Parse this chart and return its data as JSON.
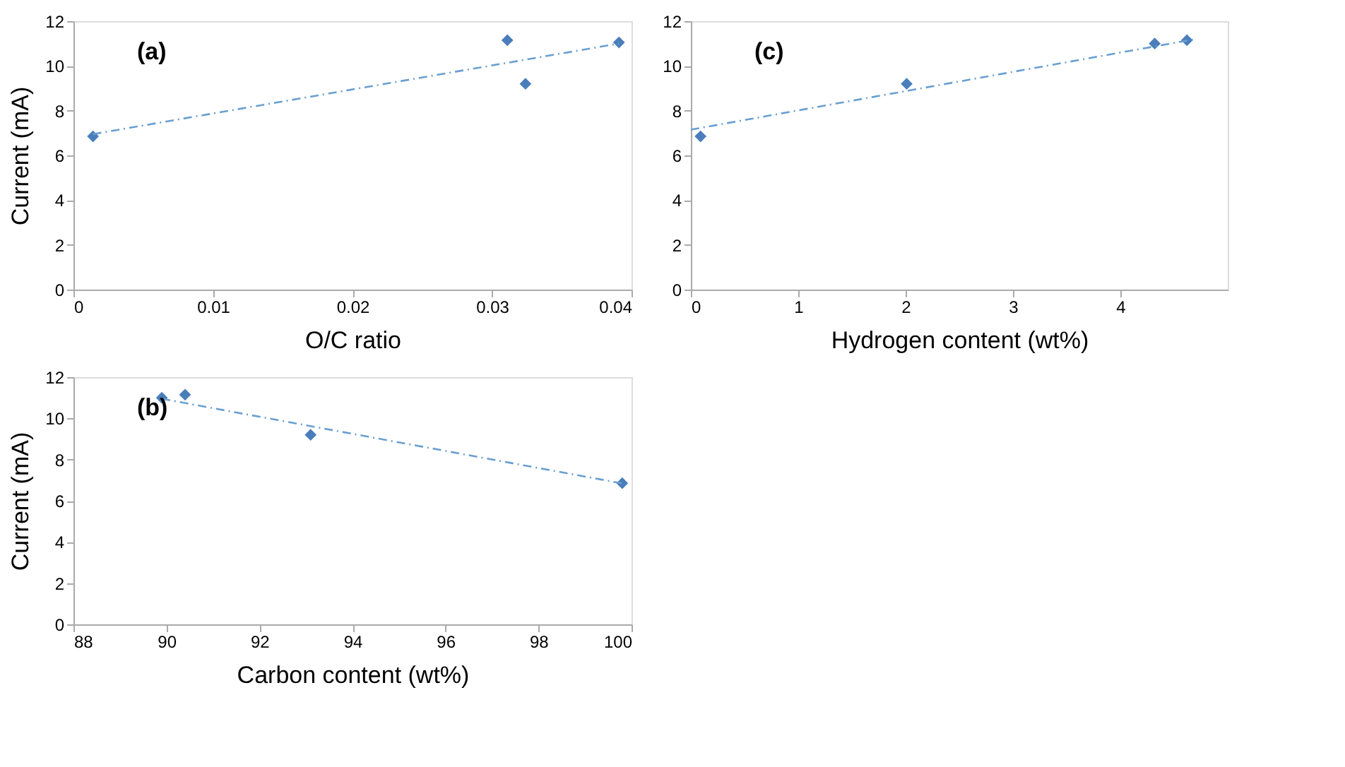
{
  "chart_data": [
    {
      "type": "scatter",
      "xlabel": "O/C ratio",
      "ylabel": "Current (mA)",
      "annotations": [
        "(a)"
      ],
      "xlim": [
        0,
        0.04
      ],
      "xticks": [
        0,
        0.01,
        0.02,
        0.03,
        0.04
      ],
      "ylim": [
        0,
        12
      ],
      "yticks": [
        0,
        2,
        4,
        6,
        8,
        10,
        12
      ],
      "grid": false,
      "series": [
        {
          "color": "#4a7ebb",
          "marker": "diamond",
          "x": [
            0.0014,
            0.0311,
            0.0324,
            0.0391
          ],
          "values": [
            6.85,
            11.15,
            9.2,
            11.05
          ]
        },
        {
          "type": "line",
          "color": "#6a9fd0",
          "line_style": "dashed",
          "x": [
            0.0014,
            0.0391
          ],
          "values": [
            6.95,
            11.0
          ]
        }
      ]
    },
    {
      "type": "scatter",
      "xlabel": "Hydrogen content (wt%)",
      "annotations": [
        "(c)"
      ],
      "xlim": [
        0,
        5
      ],
      "xticks": [
        0,
        1,
        2,
        3,
        4
      ],
      "ylim": [
        0,
        12
      ],
      "yticks": [
        0,
        2,
        4,
        6,
        8,
        10,
        12
      ],
      "grid": false,
      "series": [
        {
          "color": "#4a7ebb",
          "marker": "diamond",
          "x": [
            0.09,
            2.01,
            4.32,
            4.62
          ],
          "values": [
            6.85,
            9.2,
            11.0,
            11.15
          ]
        },
        {
          "type": "line",
          "color": "#6a9fd0",
          "line_style": "dashed",
          "x": [
            0,
            4.7
          ],
          "values": [
            7.15,
            11.2
          ]
        }
      ]
    },
    {
      "type": "scatter",
      "xlabel": "Carbon content (wt%)",
      "ylabel": "Current (mA)",
      "annotations": [
        "(b)"
      ],
      "xlim": [
        88,
        100
      ],
      "xticks": [
        88,
        90,
        92,
        94,
        96,
        98,
        100
      ],
      "ylim": [
        0,
        12
      ],
      "yticks": [
        0,
        2,
        4,
        6,
        8,
        10,
        12
      ],
      "grid": false,
      "series": [
        {
          "color": "#4a7ebb",
          "marker": "diamond",
          "x": [
            89.9,
            90.4,
            93.1,
            99.8
          ],
          "values": [
            11.0,
            11.15,
            9.2,
            6.85
          ]
        },
        {
          "type": "line",
          "color": "#6a9fd0",
          "line_style": "dashed",
          "x": [
            89.9,
            99.9
          ],
          "values": [
            10.95,
            6.8
          ]
        }
      ]
    }
  ]
}
